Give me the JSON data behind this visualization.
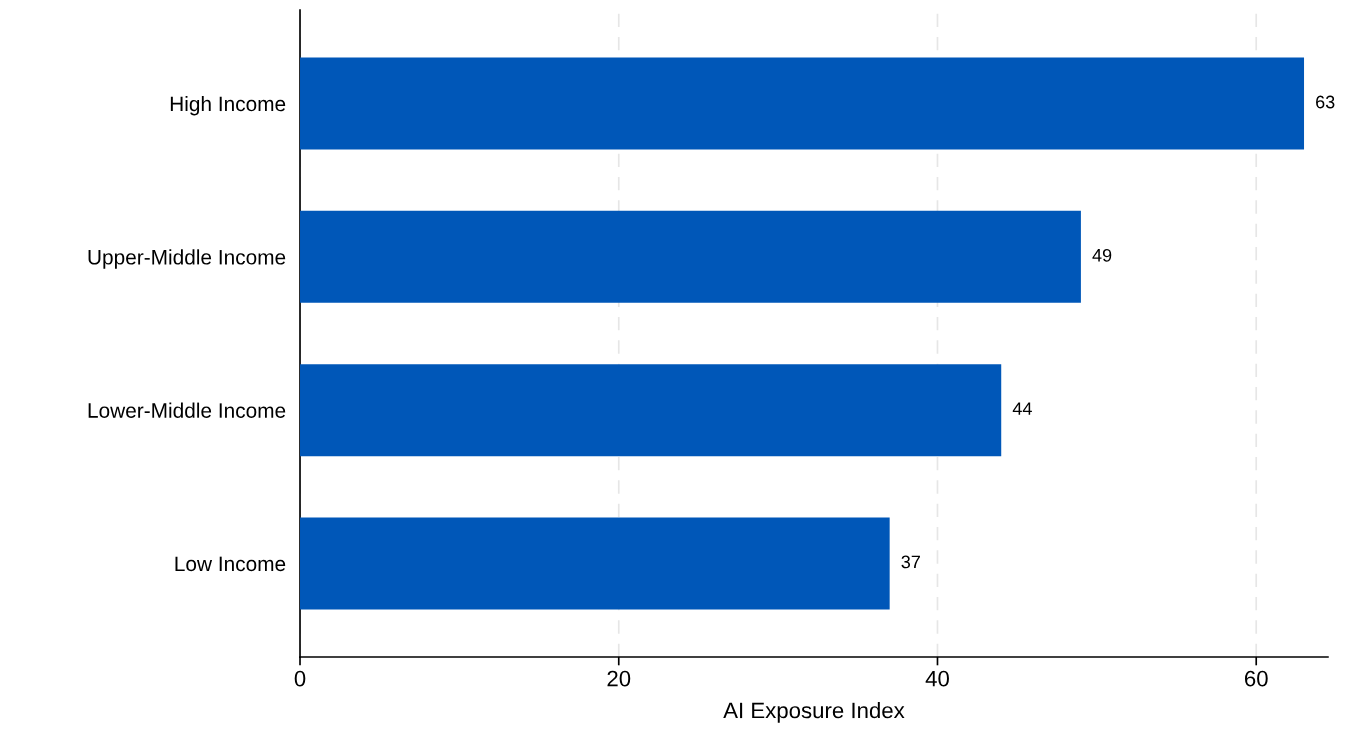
{
  "chart_data": {
    "type": "bar",
    "orientation": "horizontal",
    "xlabel": "AI Exposure Index",
    "categories": [
      "High Income",
      "Upper-Middle Income",
      "Lower-Middle Income",
      "Low Income"
    ],
    "values": [
      63,
      49,
      44,
      37
    ],
    "color": "#0057b8",
    "xlim": [
      0,
      64.5
    ],
    "xticks": [
      0,
      20,
      40,
      60
    ],
    "grid": "x",
    "data_labels": true,
    "legend": false
  }
}
